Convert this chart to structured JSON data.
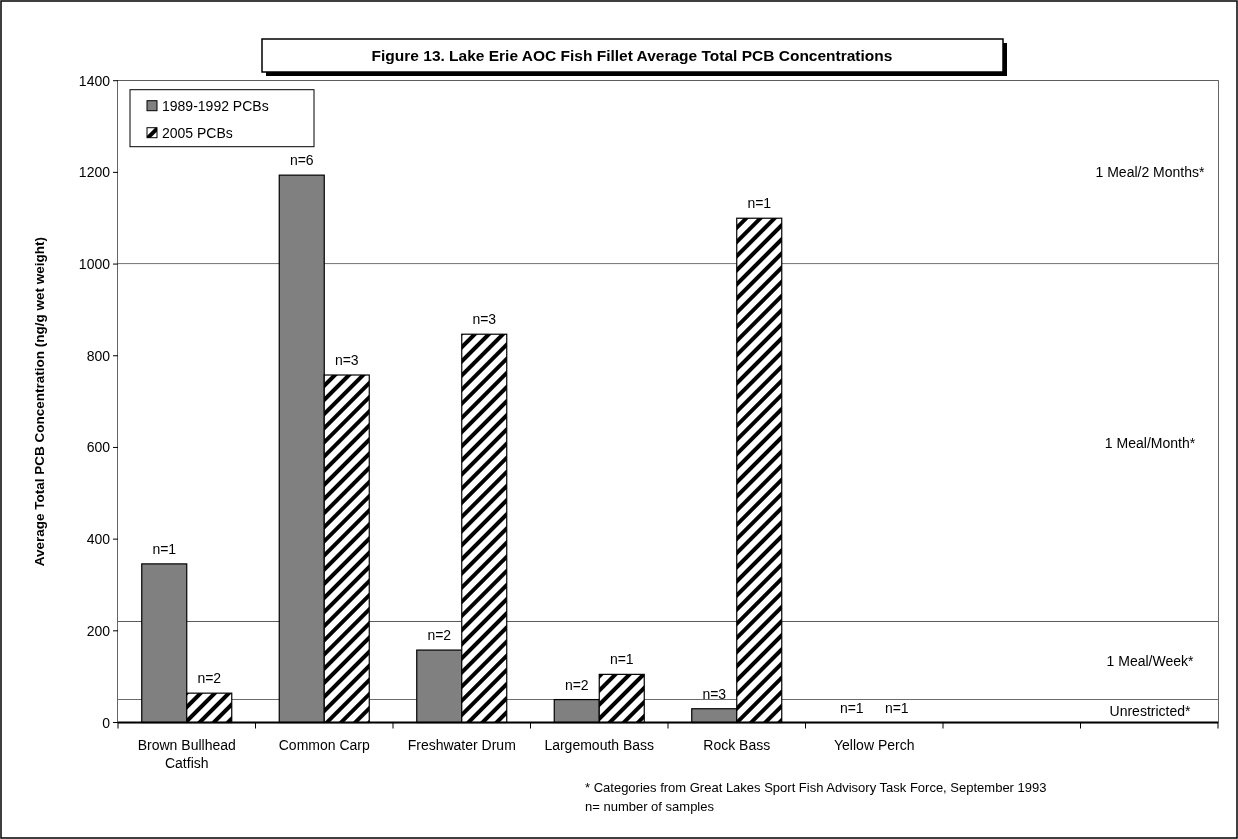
{
  "chart_data": {
    "type": "bar",
    "title": "Figure 13.  Lake Erie AOC Fish Fillet Average Total PCB Concentrations",
    "ylabel": "Average Total PCB Concentration (ng/g wet weight)",
    "categories": [
      "Brown Bullhead Catfish",
      "Common Carp",
      "Freshwater Drum",
      "Largemouth Bass",
      "Rock Bass",
      "Yellow Perch",
      null,
      null
    ],
    "series": [
      {
        "name": "1989-1992 PCBs",
        "color": "#808080",
        "values": [
          346,
          1194,
          158,
          50,
          30,
          0,
          null,
          null
        ]
      },
      {
        "name": "2005 PCBs",
        "color": "#000000",
        "values": [
          64,
          758,
          847,
          105,
          1100,
          0,
          null,
          null
        ]
      }
    ],
    "ylim": [
      0,
      1400
    ],
    "yticks": [
      0,
      200,
      400,
      600,
      800,
      1000,
      1200,
      1400
    ],
    "bands": [
      {
        "axis": "y",
        "from": 1000,
        "to": 1400,
        "label": "1 Meal/2 Months*",
        "color": "#ffffff"
      },
      {
        "axis": "y",
        "from": 220,
        "to": 1000,
        "label": "1 Meal/Month*",
        "color": "#ffffff"
      },
      {
        "axis": "y",
        "from": 50,
        "to": 220,
        "label": "1 Meal/Week*",
        "color": "#ffffff"
      },
      {
        "axis": "y",
        "from": 0,
        "to": 50,
        "label": "Unrestricted*",
        "color": "#ffffff"
      }
    ],
    "legend": "top left",
    "annotations": [
      {
        "text": "n=1",
        "x": "Brown Bullhead Catfish",
        "y": 346
      },
      {
        "text": "n=2",
        "x": "Brown Bullhead Catfish",
        "y": 64
      },
      {
        "text": "n=6",
        "x": "Common Carp",
        "y": 1194
      },
      {
        "text": "n=3",
        "x": "Common Carp",
        "y": 758
      },
      {
        "text": "n=2",
        "x": "Freshwater Drum",
        "y": 158
      },
      {
        "text": "n=3",
        "x": "Freshwater Drum",
        "y": 847
      },
      {
        "text": "n=2",
        "x": "Largemouth Bass",
        "y": 50
      },
      {
        "text": "n=1",
        "x": "Largemouth Bass",
        "y": 105
      },
      {
        "text": "n=3",
        "x": "Rock Bass",
        "y": 30
      },
      {
        "text": "n=1",
        "x": "Rock Bass",
        "y": 1100
      },
      {
        "text": "n=1",
        "x": "Yellow Perch",
        "y": 0
      },
      {
        "text": "n=1",
        "x": "Yellow Perch",
        "y": 0
      },
      "* Categories from Great Lakes Sport Fish Advisory Task Force, September 1993",
      "n= number of samples"
    ]
  }
}
